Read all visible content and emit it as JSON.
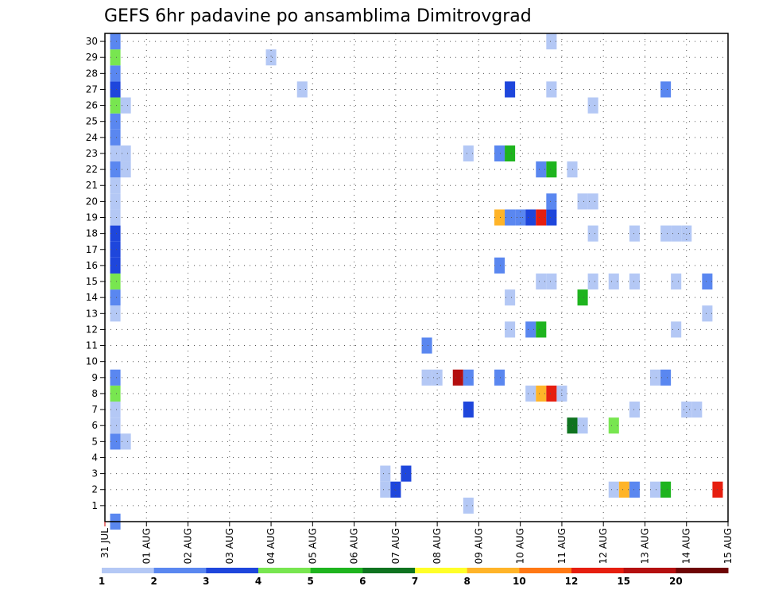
{
  "chart_data": {
    "type": "heatmap",
    "title": "GEFS 6hr padavine po ansamblima Dimitrovgrad",
    "xlabel": "",
    "ylabel": "",
    "x_ticks": [
      "31 JUL",
      "01 AUG",
      "02 AUG",
      "03 AUG",
      "04 AUG",
      "05 AUG",
      "06 AUG",
      "07 AUG",
      "08 AUG",
      "09 AUG",
      "10 AUG",
      "11 AUG",
      "12 AUG",
      "13 AUG",
      "14 AUG",
      "15 AUG"
    ],
    "xlim_days": [
      0,
      15
    ],
    "y_ticks": [
      1,
      2,
      3,
      4,
      5,
      6,
      7,
      8,
      9,
      10,
      11,
      12,
      13,
      14,
      15,
      16,
      17,
      18,
      19,
      20,
      21,
      22,
      23,
      24,
      25,
      26,
      27,
      28,
      29,
      30
    ],
    "ylim": [
      0,
      30.5
    ],
    "grid": true,
    "colorbar": {
      "labels": [
        "1",
        "2",
        "3",
        "4",
        "5",
        "6",
        "7",
        "8",
        "10",
        "12",
        "15",
        "20"
      ],
      "colors": [
        "#b4c8f5",
        "#5a87f0",
        "#1e46dc",
        "#78e650",
        "#1eb41e",
        "#0f7320",
        "#ffff28",
        "#ffb428",
        "#ff7814",
        "#e61e0f",
        "#b40f0f",
        "#6e0505"
      ]
    },
    "cells": [
      {
        "t": 0.25,
        "m": 0,
        "c": 1
      },
      {
        "t": 0.25,
        "m": 5,
        "c": 1
      },
      {
        "t": 0.5,
        "m": 5,
        "c": 0
      },
      {
        "t": 0.25,
        "m": 6,
        "c": 0
      },
      {
        "t": 0.25,
        "m": 7,
        "c": 0
      },
      {
        "t": 0.25,
        "m": 8,
        "c": 3
      },
      {
        "t": 0.25,
        "m": 9,
        "c": 1
      },
      {
        "t": 0.25,
        "m": 13,
        "c": 0
      },
      {
        "t": 0.25,
        "m": 14,
        "c": 1
      },
      {
        "t": 0.25,
        "m": 15,
        "c": 3
      },
      {
        "t": 0.25,
        "m": 16,
        "c": 2
      },
      {
        "t": 0.25,
        "m": 17,
        "c": 2
      },
      {
        "t": 0.25,
        "m": 18,
        "c": 2
      },
      {
        "t": 0.25,
        "m": 19,
        "c": 0
      },
      {
        "t": 0.25,
        "m": 20,
        "c": 0
      },
      {
        "t": 0.25,
        "m": 21,
        "c": 0
      },
      {
        "t": 0.25,
        "m": 22,
        "c": 1
      },
      {
        "t": 0.5,
        "m": 22,
        "c": 0
      },
      {
        "t": 0.25,
        "m": 23,
        "c": 0
      },
      {
        "t": 0.5,
        "m": 23,
        "c": 0
      },
      {
        "t": 0.25,
        "m": 24,
        "c": 1
      },
      {
        "t": 0.25,
        "m": 25,
        "c": 1
      },
      {
        "t": 0.25,
        "m": 26,
        "c": 3
      },
      {
        "t": 0.5,
        "m": 26,
        "c": 0
      },
      {
        "t": 0.25,
        "m": 27,
        "c": 2
      },
      {
        "t": 0.25,
        "m": 28,
        "c": 1
      },
      {
        "t": 0.25,
        "m": 29,
        "c": 3
      },
      {
        "t": 0.25,
        "m": 30,
        "c": 1
      },
      {
        "t": 4.0,
        "m": 29,
        "c": 0
      },
      {
        "t": 4.75,
        "m": 27,
        "c": 0
      },
      {
        "t": 6.75,
        "m": 2,
        "c": 0
      },
      {
        "t": 6.75,
        "m": 3,
        "c": 0
      },
      {
        "t": 7.0,
        "m": 2,
        "c": 2
      },
      {
        "t": 7.25,
        "m": 3,
        "c": 2
      },
      {
        "t": 7.75,
        "m": 11,
        "c": 1
      },
      {
        "t": 7.75,
        "m": 9,
        "c": 0
      },
      {
        "t": 8.0,
        "m": 9,
        "c": 0
      },
      {
        "t": 8.5,
        "m": 9,
        "c": 10
      },
      {
        "t": 8.75,
        "m": 9,
        "c": 1
      },
      {
        "t": 8.75,
        "m": 7,
        "c": 2
      },
      {
        "t": 8.75,
        "m": 1,
        "c": 0
      },
      {
        "t": 8.75,
        "m": 23,
        "c": 0
      },
      {
        "t": 9.5,
        "m": 9,
        "c": 1
      },
      {
        "t": 9.5,
        "m": 16,
        "c": 1
      },
      {
        "t": 9.5,
        "m": 19,
        "c": 7
      },
      {
        "t": 9.75,
        "m": 19,
        "c": 1
      },
      {
        "t": 10.0,
        "m": 19,
        "c": 1
      },
      {
        "t": 10.25,
        "m": 19,
        "c": 2
      },
      {
        "t": 10.5,
        "m": 19,
        "c": 9
      },
      {
        "t": 10.75,
        "m": 19,
        "c": 2
      },
      {
        "t": 9.5,
        "m": 23,
        "c": 1
      },
      {
        "t": 9.75,
        "m": 23,
        "c": 4
      },
      {
        "t": 9.75,
        "m": 27,
        "c": 2
      },
      {
        "t": 9.75,
        "m": 14,
        "c": 0
      },
      {
        "t": 9.75,
        "m": 12,
        "c": 0
      },
      {
        "t": 10.25,
        "m": 12,
        "c": 1
      },
      {
        "t": 10.5,
        "m": 12,
        "c": 4
      },
      {
        "t": 10.25,
        "m": 8,
        "c": 0
      },
      {
        "t": 10.5,
        "m": 8,
        "c": 7
      },
      {
        "t": 10.75,
        "m": 8,
        "c": 9
      },
      {
        "t": 11.0,
        "m": 8,
        "c": 0
      },
      {
        "t": 10.5,
        "m": 15,
        "c": 0
      },
      {
        "t": 10.75,
        "m": 15,
        "c": 0
      },
      {
        "t": 10.5,
        "m": 22,
        "c": 1
      },
      {
        "t": 10.75,
        "m": 22,
        "c": 4
      },
      {
        "t": 10.75,
        "m": 20,
        "c": 1
      },
      {
        "t": 10.75,
        "m": 27,
        "c": 0
      },
      {
        "t": 10.75,
        "m": 30,
        "c": 0
      },
      {
        "t": 11.25,
        "m": 6,
        "c": 5
      },
      {
        "t": 11.5,
        "m": 6,
        "c": 0
      },
      {
        "t": 11.25,
        "m": 22,
        "c": 0
      },
      {
        "t": 11.5,
        "m": 14,
        "c": 4
      },
      {
        "t": 11.5,
        "m": 20,
        "c": 0
      },
      {
        "t": 11.75,
        "m": 20,
        "c": 0
      },
      {
        "t": 11.75,
        "m": 26,
        "c": 0
      },
      {
        "t": 11.75,
        "m": 18,
        "c": 0
      },
      {
        "t": 11.75,
        "m": 15,
        "c": 0
      },
      {
        "t": 12.25,
        "m": 6,
        "c": 3
      },
      {
        "t": 12.25,
        "m": 2,
        "c": 0
      },
      {
        "t": 12.5,
        "m": 2,
        "c": 7
      },
      {
        "t": 12.75,
        "m": 2,
        "c": 1
      },
      {
        "t": 12.25,
        "m": 15,
        "c": 0
      },
      {
        "t": 12.75,
        "m": 15,
        "c": 0
      },
      {
        "t": 12.75,
        "m": 18,
        "c": 0
      },
      {
        "t": 12.75,
        "m": 7,
        "c": 0
      },
      {
        "t": 13.25,
        "m": 2,
        "c": 0
      },
      {
        "t": 13.5,
        "m": 2,
        "c": 4
      },
      {
        "t": 13.25,
        "m": 9,
        "c": 0
      },
      {
        "t": 13.5,
        "m": 9,
        "c": 1
      },
      {
        "t": 13.5,
        "m": 27,
        "c": 1
      },
      {
        "t": 13.5,
        "m": 18,
        "c": 0
      },
      {
        "t": 13.75,
        "m": 18,
        "c": 0
      },
      {
        "t": 14.0,
        "m": 18,
        "c": 0
      },
      {
        "t": 13.75,
        "m": 15,
        "c": 0
      },
      {
        "t": 13.75,
        "m": 12,
        "c": 0
      },
      {
        "t": 14.0,
        "m": 7,
        "c": 0
      },
      {
        "t": 14.25,
        "m": 7,
        "c": 0
      },
      {
        "t": 14.5,
        "m": 15,
        "c": 1
      },
      {
        "t": 14.5,
        "m": 13,
        "c": 0
      },
      {
        "t": 14.75,
        "m": 2,
        "c": 9
      }
    ]
  }
}
